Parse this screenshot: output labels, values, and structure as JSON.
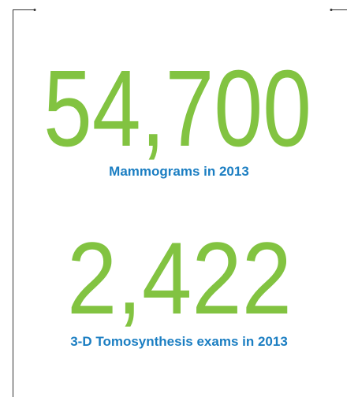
{
  "stats": [
    {
      "value": "54,700",
      "label": "Mammograms in 2013"
    },
    {
      "value": "2,422",
      "label": "3-D Tomosynthesis exams in 2013"
    }
  ]
}
